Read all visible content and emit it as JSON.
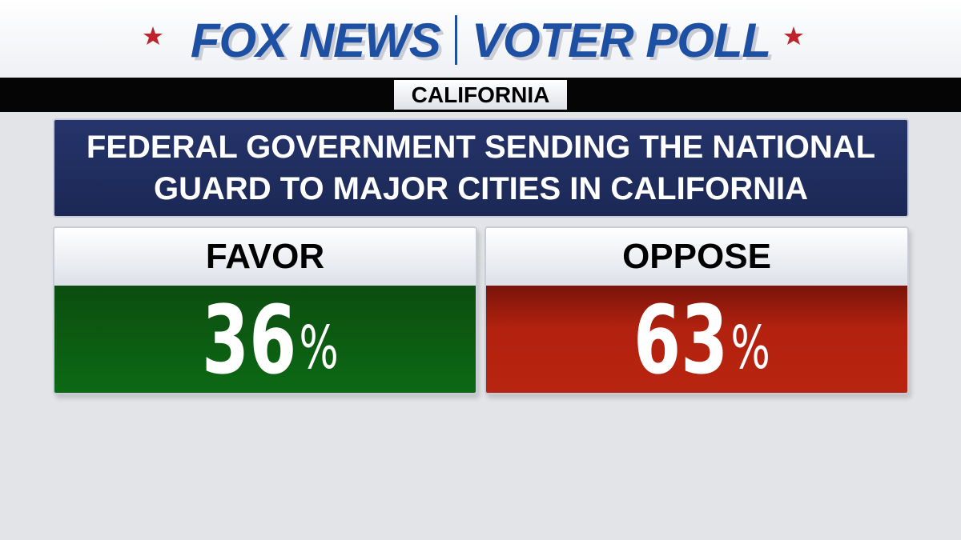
{
  "header": {
    "brand": "FOX NEWS",
    "title": "VOTER POLL",
    "region": "CALIFORNIA"
  },
  "question": {
    "lines": [
      "FEDERAL GOVERNMENT SENDING THE NATIONAL",
      "GUARD TO MAJOR CITIES IN CALIFORNIA"
    ]
  },
  "results": [
    {
      "label": "FAVOR",
      "value": 36,
      "unit": "%"
    },
    {
      "label": "OPPOSE",
      "value": 63,
      "unit": "%"
    }
  ]
}
